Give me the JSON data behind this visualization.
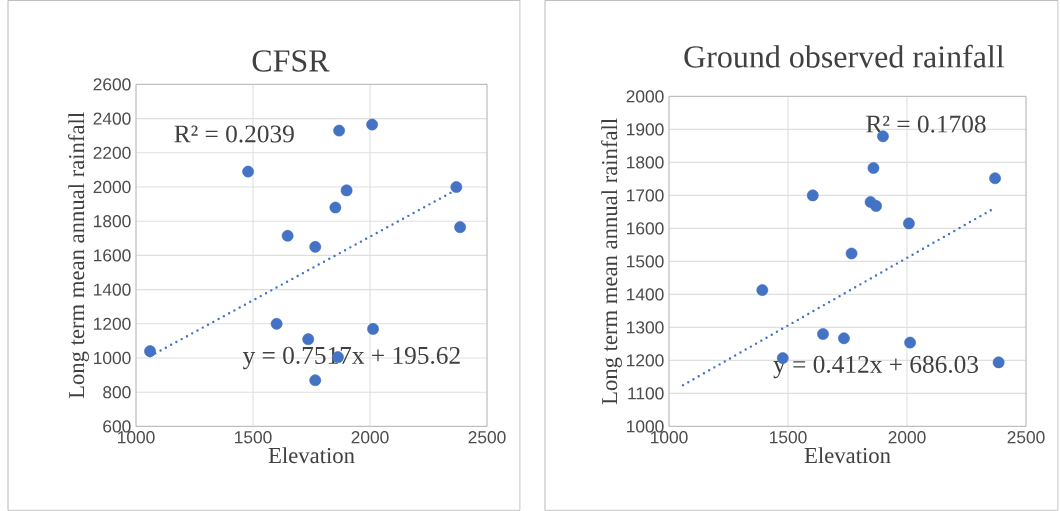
{
  "chart_data": [
    {
      "type": "scatter",
      "title": "CFSR",
      "xlabel": "Elevation",
      "ylabel": "Long term mean annual rainfall",
      "series": [
        {
          "color": "#4472c4",
          "marker": "circle",
          "x": [
            1060,
            1479,
            1648,
            1601,
            1736,
            1766,
            1766,
            1852,
            1868,
            1863,
            1900,
            2009,
            2013,
            2369,
            2385
          ],
          "values": [
            1040,
            2090,
            1715,
            1200,
            1110,
            1650,
            870,
            1880,
            2330,
            1005,
            1980,
            2365,
            1170,
            2000,
            1765
          ]
        },
        {
          "type": "line",
          "color": "#4472c4",
          "marker": "none",
          "line_style": "dotted",
          "x": [
            1060,
            2350
          ],
          "values": [
            1010,
            1970
          ]
        }
      ],
      "xlim": [
        1000,
        2500
      ],
      "ylim": [
        600,
        2600
      ],
      "xticks": [
        1000,
        1500,
        2000,
        2500
      ],
      "yticks": [
        600,
        800,
        1000,
        1200,
        1400,
        1600,
        1800,
        2000,
        2200,
        2400,
        2600
      ],
      "grid": true,
      "annotations": [
        "R² = 0.2039",
        "y = 0.7517x + 195.62"
      ]
    },
    {
      "type": "scatter",
      "title": "Ground observed rainfall",
      "xlabel": "Elevation",
      "ylabel": "Long term mean annual rainfall",
      "series": [
        {
          "color": "#4472c4",
          "marker": "circle",
          "x": [
            1392,
            1478,
            1604,
            1647,
            1735,
            1767,
            1847,
            1870,
            1859,
            1899,
            2008,
            2013,
            2370,
            2385
          ],
          "values": [
            1413,
            1207,
            1700,
            1280,
            1267,
            1524,
            1680,
            1668,
            1783,
            1879,
            1615,
            1254,
            1752,
            1194
          ]
        },
        {
          "type": "line",
          "color": "#4472c4",
          "marker": "none",
          "line_style": "dotted",
          "x": [
            1059,
            2364
          ],
          "values": [
            1125,
            1660
          ]
        }
      ],
      "xlim": [
        1000,
        2500
      ],
      "ylim": [
        1000,
        2000
      ],
      "xticks": [
        1000,
        1500,
        2000,
        2500
      ],
      "yticks": [
        1000,
        1100,
        1200,
        1300,
        1400,
        1500,
        1600,
        1700,
        1800,
        1900,
        2000
      ],
      "grid": true,
      "annotations": [
        "R² = 0.1708",
        "y = 0.412x + 686.03"
      ]
    }
  ]
}
